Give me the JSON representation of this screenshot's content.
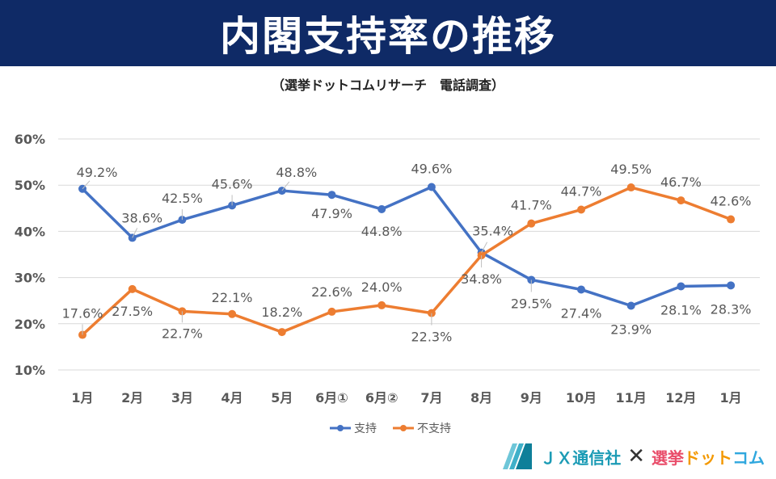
{
  "header": {
    "title": "内閣支持率の推移",
    "subtitle": "（選挙ドットコムリサーチ　電話調査）"
  },
  "logo": {
    "jx_text": "ＪＸ通信社",
    "cross": "✕",
    "senkyo_part1": "選挙",
    "senkyo_part2": "ドット",
    "senkyo_part3": "コム"
  },
  "colors": {
    "support": "#4472c4",
    "nonsupport": "#ed7d31",
    "header_bg": "#0f2a66",
    "grid": "#d9d9d9"
  },
  "chart_data": {
    "type": "line",
    "categories": [
      "1月",
      "2月",
      "3月",
      "4月",
      "5月",
      "6月①",
      "6月②",
      "7月",
      "8月",
      "9月",
      "10月",
      "11月",
      "12月",
      "1月"
    ],
    "series": [
      {
        "name": "支持",
        "values": [
          49.2,
          38.6,
          42.5,
          45.6,
          48.8,
          47.9,
          44.8,
          49.6,
          35.4,
          29.5,
          27.4,
          23.9,
          28.1,
          28.3
        ],
        "labels": [
          "49.2%",
          "38.6%",
          "42.5%",
          "45.6%",
          "48.8%",
          "47.9%",
          "44.8%",
          "49.6%",
          "35.4%",
          "29.5%",
          "27.4%",
          "23.9%",
          "28.1%",
          "28.3%"
        ]
      },
      {
        "name": "不支持",
        "values": [
          17.6,
          27.5,
          22.7,
          22.1,
          18.2,
          22.6,
          24.0,
          22.3,
          34.8,
          41.7,
          44.7,
          49.5,
          46.7,
          42.6
        ],
        "labels": [
          "17.6%",
          "27.5%",
          "22.7%",
          "22.1%",
          "18.2%",
          "22.6%",
          "24.0%",
          "22.3%",
          "34.8%",
          "41.7%",
          "44.7%",
          "49.5%",
          "46.7%",
          "42.6%"
        ]
      }
    ],
    "ylim": [
      10,
      60
    ],
    "yticks": [
      "10%",
      "20%",
      "30%",
      "40%",
      "50%",
      "60%"
    ],
    "yaxis_values": [
      10,
      20,
      30,
      40,
      50,
      60
    ],
    "grid": true,
    "legend_position": "bottom"
  }
}
